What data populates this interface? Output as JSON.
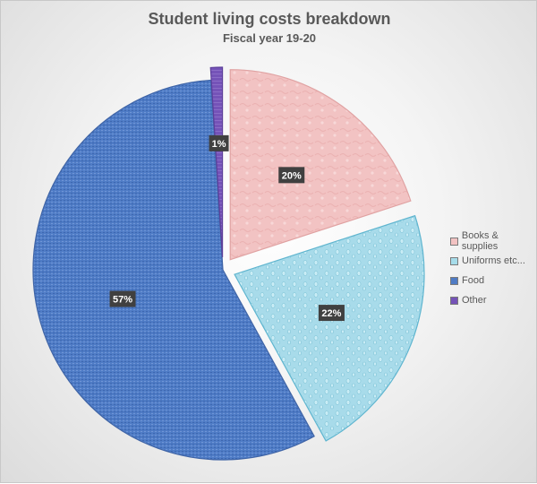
{
  "chart_data": {
    "type": "pie",
    "title": "Student living costs breakdown",
    "subtitle": "Fiscal year 19-20",
    "categories": [
      "Books & supplies",
      "Uniforms etc...",
      "Food",
      "Other"
    ],
    "values": [
      20,
      22,
      57,
      1
    ],
    "data_labels": [
      "20%",
      "22%",
      "57%",
      "1%"
    ],
    "colors": [
      "#f2c2c2",
      "#a6dcea",
      "#4f7bc4",
      "#7553b8"
    ],
    "exploded": true,
    "legend_position": "right"
  }
}
